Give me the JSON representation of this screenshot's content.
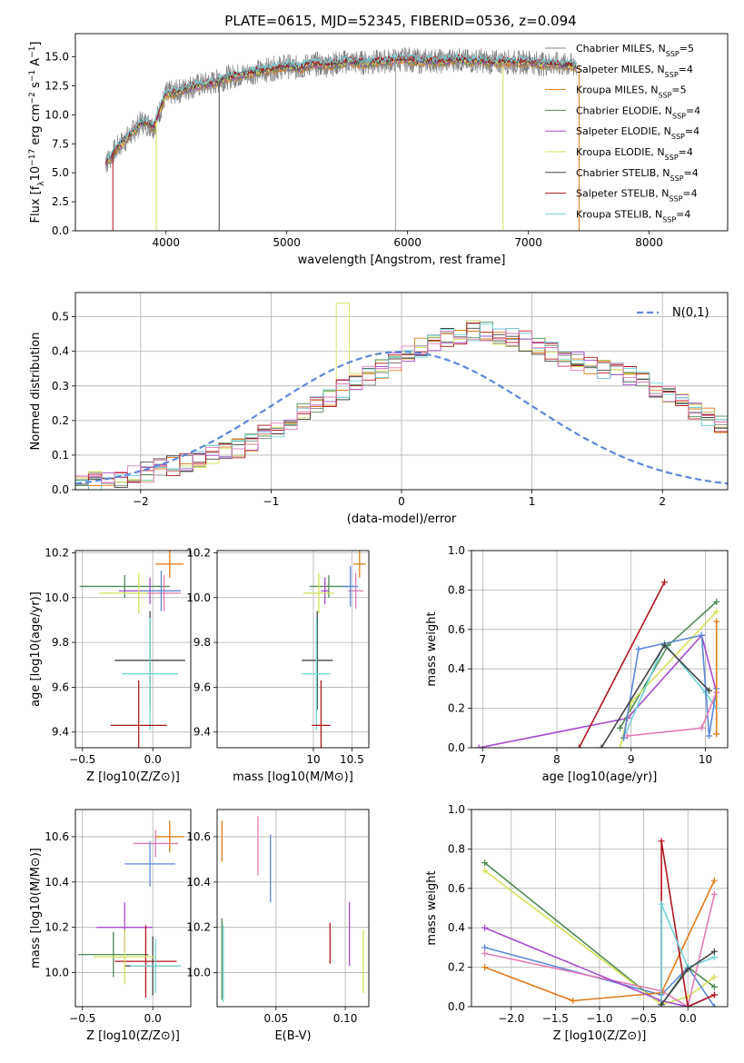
{
  "figure": {
    "title": "PLATE=0615, MJD=52345, FIBERID=0536, z=0.094",
    "series_colors": [
      "#808080",
      "#9aa0a6",
      "#e07b1a",
      "#4f8a55",
      "#a64dcc",
      "#d6e05a",
      "#444444",
      "#b0161f",
      "#6fd3d8"
    ]
  },
  "chart_data": [
    {
      "type": "line",
      "panel": "spectrum",
      "title": "PLATE=0615, MJD=52345, FIBERID=0536, z=0.094",
      "xlabel": "wavelength [Angstrom, rest frame]",
      "ylabel": "Flux [f_λ10^-17 erg cm^-2 s^-1 A^-1]",
      "xlim": [
        3250,
        8650
      ],
      "ylim": [
        0,
        17
      ],
      "xticks": [
        "4000",
        "5000",
        "6000",
        "7000",
        "8000"
      ],
      "yticks": [
        "0.0",
        "2.5",
        "5.0",
        "7.5",
        "10.0",
        "12.5",
        "15.0"
      ],
      "grid": false,
      "legend_position": "right",
      "legend": [
        "Chabrier MILES, N_SSP=5",
        "Salpeter MILES, N_SSP=4",
        "Kroupa MILES, N_SSP=5",
        "Chabrier ELODIE, N_SSP=4",
        "Salpeter ELODIE, N_SSP=4",
        "Kroupa ELODIE, N_SSP=4",
        "Chabrier STELIB, N_SSP=4",
        "Salpeter STELIB, N_SSP=4",
        "Kroupa STELIB, N_SSP=4"
      ],
      "x": [
        3500,
        3600,
        3700,
        3800,
        3900,
        4000,
        4100,
        4200,
        4300,
        4400,
        4500,
        4600,
        4700,
        4800,
        4900,
        5000,
        5100,
        5200,
        5300,
        5400,
        5500,
        5600,
        5700,
        5800,
        5900,
        6000,
        6100,
        6200,
        6300,
        6400,
        6500,
        6600,
        6700,
        6800,
        6900,
        7000,
        7100,
        7200,
        7300,
        7400
      ],
      "series": [
        {
          "values": [
            5.8,
            7.2,
            8.2,
            9.4,
            9.0,
            11.8,
            12.0,
            12.4,
            12.6,
            12.8,
            13.2,
            13.4,
            13.6,
            13.8,
            14.0,
            14.2,
            14.0,
            14.4,
            14.3,
            14.4,
            14.6,
            14.5,
            14.5,
            14.6,
            14.7,
            14.8,
            14.6,
            14.7,
            14.6,
            14.8,
            14.6,
            14.7,
            14.5,
            14.6,
            14.5,
            14.6,
            14.4,
            14.4,
            14.3,
            14.2
          ]
        }
      ]
    },
    {
      "type": "histogram",
      "panel": "residuals",
      "xlabel": "(data-model)/error",
      "ylabel": "Normed distribution",
      "xlim": [
        -2.5,
        2.5
      ],
      "ylim": [
        0,
        0.57
      ],
      "xticks": [
        "−2",
        "−1",
        "0",
        "1",
        "2"
      ],
      "yticks": [
        "0.0",
        "0.1",
        "0.2",
        "0.3",
        "0.4",
        "0.5"
      ],
      "grid": true,
      "legend_position": "top-right",
      "reference_label": "N(0,1)",
      "bin_width": 0.1,
      "bin_start": -2.5,
      "series_base": [
        0.02,
        0.025,
        0.03,
        0.035,
        0.04,
        0.05,
        0.06,
        0.07,
        0.08,
        0.09,
        0.1,
        0.11,
        0.12,
        0.14,
        0.16,
        0.18,
        0.2,
        0.22,
        0.25,
        0.27,
        0.29,
        0.31,
        0.33,
        0.35,
        0.37,
        0.39,
        0.41,
        0.43,
        0.44,
        0.45,
        0.46,
        0.46,
        0.45,
        0.44,
        0.43,
        0.42,
        0.4,
        0.38,
        0.37,
        0.36,
        0.35,
        0.34,
        0.33,
        0.31,
        0.29,
        0.27,
        0.25,
        0.23,
        0.21,
        0.19
      ]
    },
    {
      "type": "scatter",
      "panel": "age-vs-Z",
      "xlabel": "Z [log10(Z/Z⊙)]",
      "ylabel": "age [log10(age/yr)]",
      "xlim": [
        -0.55,
        0.27
      ],
      "ylim": [
        9.33,
        10.21
      ],
      "xticks": [
        "−0.5",
        "0.0"
      ],
      "yticks": [
        "9.4",
        "9.6",
        "9.8",
        "10.0",
        "10.2"
      ],
      "grid": true,
      "points": [
        {
          "x": 0.12,
          "y": 10.15,
          "xerr": 0.1,
          "yerr": 0.06,
          "color": "#e07b1a"
        },
        {
          "x": -0.2,
          "y": 10.05,
          "xerr": 0.32,
          "yerr": 0.05,
          "color": "#4f8a55"
        },
        {
          "x": -0.02,
          "y": 10.03,
          "xerr": 0.22,
          "yerr": 0.06,
          "color": "#a64dcc"
        },
        {
          "x": -0.1,
          "y": 10.02,
          "xerr": 0.28,
          "yerr": 0.09,
          "color": "#d6e05a"
        },
        {
          "x": 0.08,
          "y": 10.02,
          "xerr": 0.12,
          "yerr": 0.08,
          "color": "#e27bb7"
        },
        {
          "x": 0.06,
          "y": 10.03,
          "xerr": 0.14,
          "yerr": 0.09,
          "color": "#5d88d8"
        },
        {
          "x": -0.02,
          "y": 9.72,
          "xerr": 0.25,
          "yerr": 0.22,
          "color": "#444444"
        },
        {
          "x": -0.02,
          "y": 9.66,
          "xerr": 0.2,
          "yerr": 0.25,
          "color": "#6fd3d8"
        },
        {
          "x": -0.1,
          "y": 9.43,
          "xerr": 0.2,
          "yerr": 0.2,
          "color": "#b0161f"
        }
      ]
    },
    {
      "type": "scatter",
      "panel": "age-vs-mass",
      "xlabel": "mass [log10(M/M⊙)]",
      "xlim": [
        8.75,
        10.72
      ],
      "ylim": [
        9.33,
        10.21
      ],
      "xticks": [
        "10",
        "10.5"
      ],
      "yticks": [
        "9.4",
        "9.6",
        "9.8",
        "10.0",
        "10.2"
      ],
      "grid": true,
      "points": [
        {
          "x": 10.6,
          "y": 10.15,
          "xerr": 0.08,
          "yerr": 0.06,
          "color": "#e07b1a"
        },
        {
          "x": 10.2,
          "y": 10.05,
          "xerr": 0.25,
          "yerr": 0.05,
          "color": "#4f8a55"
        },
        {
          "x": 10.15,
          "y": 10.03,
          "xerr": 0.05,
          "yerr": 0.06,
          "color": "#a64dcc"
        },
        {
          "x": 10.07,
          "y": 10.02,
          "xerr": 0.2,
          "yerr": 0.09,
          "color": "#d6e05a"
        },
        {
          "x": 10.55,
          "y": 10.03,
          "xerr": 0.1,
          "yerr": 0.08,
          "color": "#e27bb7"
        },
        {
          "x": 10.48,
          "y": 10.05,
          "xerr": 0.1,
          "yerr": 0.09,
          "color": "#5d88d8"
        },
        {
          "x": 10.05,
          "y": 9.72,
          "xerr": 0.2,
          "yerr": 0.22,
          "color": "#444444"
        },
        {
          "x": 10.04,
          "y": 9.66,
          "xerr": 0.18,
          "yerr": 0.25,
          "color": "#6fd3d8"
        },
        {
          "x": 10.1,
          "y": 9.43,
          "xerr": 0.12,
          "yerr": 0.2,
          "color": "#b0161f"
        }
      ]
    },
    {
      "type": "line",
      "panel": "mass-weight-vs-age",
      "xlabel": "age [log10(age/yr)]",
      "ylabel": "mass weight",
      "xlim": [
        6.85,
        10.3
      ],
      "ylim": [
        0,
        1.0
      ],
      "xticks": [
        "7",
        "8",
        "9",
        "10"
      ],
      "yticks": [
        "0.0",
        "0.2",
        "0.4",
        "0.6",
        "0.8",
        "1.0"
      ],
      "grid": true,
      "series": [
        {
          "color": "#a64dcc",
          "x": [
            6.95,
            8.95,
            9.95,
            10.15
          ],
          "y": [
            0.0,
            0.15,
            0.57,
            0.28
          ]
        },
        {
          "color": "#b0161f",
          "x": [
            8.3,
            9.45
          ],
          "y": [
            0.0,
            0.84
          ]
        },
        {
          "color": "#4f8a55",
          "x": [
            8.85,
            9.5,
            10.15
          ],
          "y": [
            0.1,
            0.52,
            0.74
          ]
        },
        {
          "color": "#d6e05a",
          "x": [
            8.85,
            9.0,
            10.15
          ],
          "y": [
            0.0,
            0.23,
            0.69
          ]
        },
        {
          "color": "#6fd3d8",
          "x": [
            8.9,
            9.45,
            10.0,
            10.15
          ],
          "y": [
            0.05,
            0.53,
            0.28,
            0.2
          ]
        },
        {
          "color": "#5d88d8",
          "x": [
            8.9,
            9.1,
            9.95,
            10.05,
            10.15
          ],
          "y": [
            0.05,
            0.5,
            0.57,
            0.06,
            0.3
          ]
        },
        {
          "color": "#444444",
          "x": [
            8.6,
            9.45,
            10.05
          ],
          "y": [
            0.0,
            0.52,
            0.29
          ]
        },
        {
          "color": "#e27bb7",
          "x": [
            8.95,
            9.95,
            10.15
          ],
          "y": [
            0.06,
            0.1,
            0.28
          ]
        },
        {
          "color": "#e07b1a",
          "x": [
            10.15,
            10.15
          ],
          "y": [
            0.07,
            0.64
          ]
        }
      ]
    },
    {
      "type": "scatter",
      "panel": "mass-vs-Z",
      "xlabel": "Z [log10(Z/Z⊙)]",
      "ylabel": "mass [log10(M/M⊙)]",
      "xlim": [
        -0.55,
        0.27
      ],
      "ylim": [
        9.85,
        10.72
      ],
      "xticks": [
        "−0.5",
        "0.0"
      ],
      "yticks": [
        "10.0",
        "10.2",
        "10.4",
        "10.6"
      ],
      "grid": true,
      "points": [
        {
          "x": 0.12,
          "y": 10.6,
          "xerr": 0.1,
          "yerr": 0.07,
          "color": "#e07b1a"
        },
        {
          "x": 0.02,
          "y": 10.57,
          "xerr": 0.16,
          "yerr": 0.06,
          "color": "#e27bb7"
        },
        {
          "x": -0.02,
          "y": 10.48,
          "xerr": 0.18,
          "yerr": 0.1,
          "color": "#5d88d8"
        },
        {
          "x": -0.2,
          "y": 10.2,
          "xerr": 0.2,
          "yerr": 0.11,
          "color": "#a64dcc"
        },
        {
          "x": -0.28,
          "y": 10.08,
          "xerr": 0.25,
          "yerr": 0.1,
          "color": "#4f8a55"
        },
        {
          "x": -0.05,
          "y": 10.05,
          "xerr": 0.22,
          "yerr": 0.16,
          "color": "#b0161f"
        },
        {
          "x": 0.0,
          "y": 10.03,
          "xerr": 0.2,
          "yerr": 0.13,
          "color": "#444444"
        },
        {
          "x": -0.2,
          "y": 10.07,
          "xerr": 0.22,
          "yerr": 0.12,
          "color": "#d6e05a"
        },
        {
          "x": 0.02,
          "y": 10.03,
          "xerr": 0.18,
          "yerr": 0.12,
          "color": "#6fd3d8"
        }
      ]
    },
    {
      "type": "scatter",
      "panel": "mass-vs-EBV",
      "xlabel": "E(B-V)",
      "xlim": [
        0.0075,
        0.117
      ],
      "ylim": [
        9.85,
        10.72
      ],
      "xticks": [
        "0.05",
        "0.10"
      ],
      "yticks": [
        "10.0",
        "10.2",
        "10.4",
        "10.6"
      ],
      "grid": true,
      "points": [
        {
          "x": 0.011,
          "y": 10.58,
          "yerr": 0.09,
          "color": "#e07b1a"
        },
        {
          "x": 0.037,
          "y": 10.56,
          "yerr": 0.13,
          "color": "#e27bb7"
        },
        {
          "x": 0.046,
          "y": 10.46,
          "yerr": 0.15,
          "color": "#5d88d8"
        },
        {
          "x": 0.103,
          "y": 10.17,
          "yerr": 0.14,
          "color": "#a64dcc"
        },
        {
          "x": 0.089,
          "y": 10.13,
          "yerr": 0.09,
          "color": "#b0161f"
        },
        {
          "x": 0.113,
          "y": 10.05,
          "yerr": 0.14,
          "color": "#d6e05a"
        },
        {
          "x": 0.011,
          "y": 10.06,
          "yerr": 0.18,
          "color": "#4f8a55"
        },
        {
          "x": 0.012,
          "y": 10.04,
          "yerr": 0.17,
          "color": "#6fd3d8"
        }
      ]
    },
    {
      "type": "line",
      "panel": "mass-weight-vs-Z",
      "xlabel": "Z [log10(Z/Z⊙)]",
      "ylabel": "mass weight",
      "xlim": [
        -2.45,
        0.45
      ],
      "ylim": [
        0,
        1.0
      ],
      "xticks": [
        "−2.0",
        "−1.5",
        "−1.0",
        "−0.5",
        "0.0"
      ],
      "yticks": [
        "0.0",
        "0.2",
        "0.4",
        "0.6",
        "0.8",
        "1.0"
      ],
      "grid": true,
      "series": [
        {
          "color": "#4f8a55",
          "x": [
            -2.3,
            -0.3,
            0.0,
            0.3
          ],
          "y": [
            0.73,
            0.01,
            0.2,
            0.1
          ]
        },
        {
          "color": "#d6e05a",
          "x": [
            -2.3,
            -0.3,
            0.0,
            0.3
          ],
          "y": [
            0.69,
            0.01,
            0.05,
            0.15
          ]
        },
        {
          "color": "#5d88d8",
          "x": [
            -2.3,
            -0.3,
            0.0,
            0.3
          ],
          "y": [
            0.3,
            0.06,
            0.2,
            0.0
          ]
        },
        {
          "color": "#e27bb7",
          "x": [
            -2.3,
            -0.3,
            0.0,
            0.3
          ],
          "y": [
            0.27,
            0.08,
            0.0,
            0.57
          ]
        },
        {
          "color": "#e07b1a",
          "x": [
            -2.3,
            -1.3,
            -0.3,
            0.3
          ],
          "y": [
            0.2,
            0.03,
            0.07,
            0.64
          ]
        },
        {
          "color": "#a64dcc",
          "x": [
            -2.3,
            -0.3,
            0.0,
            0.3
          ],
          "y": [
            0.4,
            0.03,
            0.0,
            0.06
          ]
        },
        {
          "color": "#b0161f",
          "x": [
            -0.3,
            -0.3,
            0.0,
            0.3
          ],
          "y": [
            0.01,
            0.84,
            0.0,
            0.06
          ]
        },
        {
          "color": "#6fd3d8",
          "x": [
            -0.3,
            -0.3,
            0.0,
            0.3
          ],
          "y": [
            0.01,
            0.52,
            0.2,
            0.25
          ]
        },
        {
          "color": "#444444",
          "x": [
            -0.3,
            0.0,
            0.3
          ],
          "y": [
            0.01,
            0.19,
            0.28
          ]
        }
      ]
    }
  ]
}
